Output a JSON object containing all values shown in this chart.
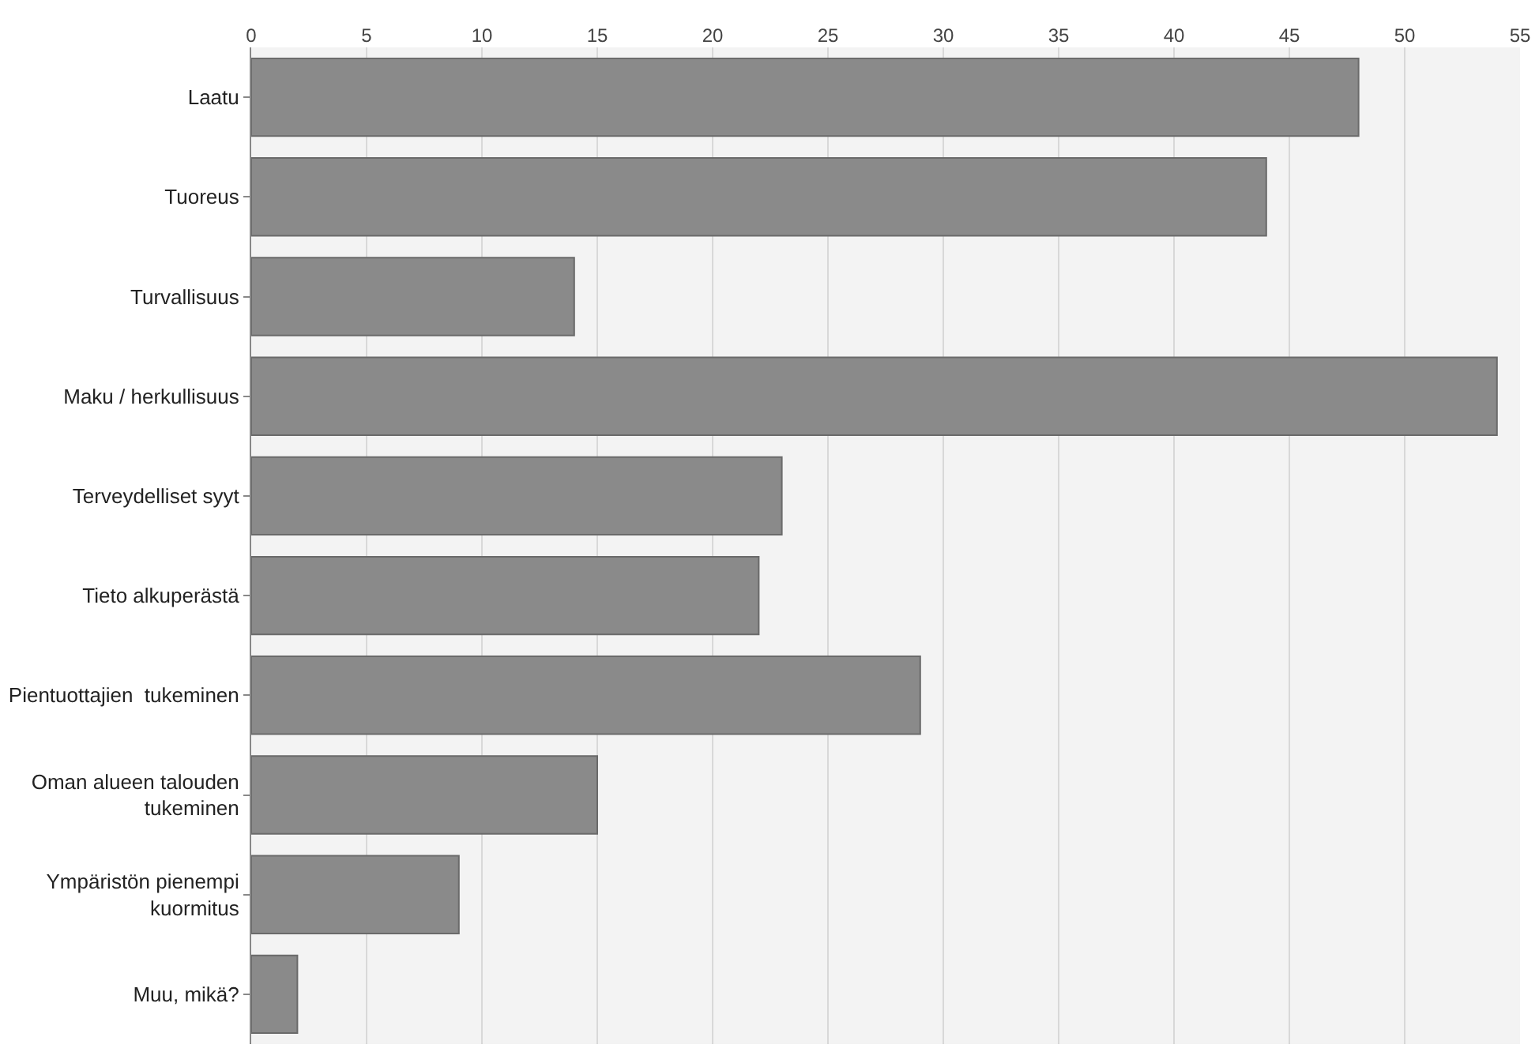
{
  "chart_data": {
    "type": "bar",
    "orientation": "horizontal",
    "categories": [
      "Laatu",
      "Tuoreus",
      "Turvallisuus",
      "Maku / herkullisuus",
      "Terveydelliset syyt",
      "Tieto alkuperästä",
      "Pientuottajien  tukeminen",
      "Oman alueen talouden tukeminen",
      "Ympäristön pienempi kuormitus",
      "Muu, mikä?"
    ],
    "values": [
      48,
      44,
      14,
      54,
      23,
      22,
      29,
      15,
      9,
      2
    ],
    "color": "#8a8a8a",
    "xlim": [
      0,
      55
    ],
    "xticks": [
      0,
      5,
      10,
      15,
      20,
      25,
      30,
      35,
      40,
      45,
      50,
      55
    ],
    "grid": "x",
    "legend": false
  }
}
